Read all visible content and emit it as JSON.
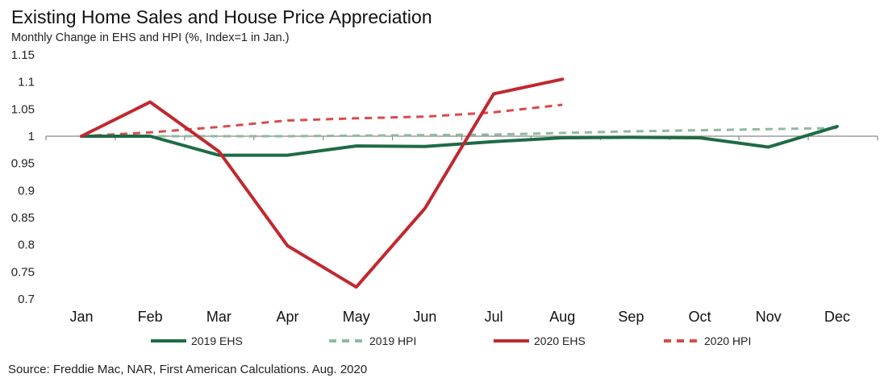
{
  "chart_data": {
    "type": "line",
    "title": "Existing Home Sales and House Price Appreciation",
    "subtitle": "Monthly Change in EHS and HPI (%, Index=1 in Jan.)",
    "categories": [
      "Jan",
      "Feb",
      "Mar",
      "Apr",
      "May",
      "Jun",
      "Jul",
      "Aug",
      "Sep",
      "Oct",
      "Nov",
      "Dec"
    ],
    "ylim": [
      0.7,
      1.15
    ],
    "yticks": [
      "1.15",
      "1.1",
      "1.05",
      "1",
      "0.95",
      "0.9",
      "0.85",
      "0.8",
      "0.75",
      "0.7"
    ],
    "grid": false,
    "legend_position": "bottom",
    "series": [
      {
        "name": "2019 EHS",
        "style": "solid",
        "color": "#1e6b45",
        "values": [
          1.0,
          1.0,
          0.965,
          0.965,
          0.982,
          0.981,
          0.99,
          0.997,
          0.998,
          0.997,
          0.98,
          1.018
        ]
      },
      {
        "name": "2019 HPI",
        "style": "dashed",
        "color": "#8fb9a0",
        "values": [
          1.0,
          1.0,
          1.0,
          1.0,
          1.001,
          1.002,
          1.003,
          1.006,
          1.009,
          1.011,
          1.013,
          1.015
        ]
      },
      {
        "name": "2020 EHS",
        "style": "solid",
        "color": "#c1282e",
        "values": [
          1.0,
          1.063,
          0.972,
          0.798,
          0.722,
          0.867,
          1.078,
          1.105,
          null,
          null,
          null,
          null
        ]
      },
      {
        "name": "2020 HPI",
        "style": "dashed",
        "color": "#d94a4a",
        "values": [
          1.0,
          1.007,
          1.017,
          1.029,
          1.033,
          1.036,
          1.044,
          1.058,
          null,
          null,
          null,
          null
        ]
      }
    ]
  },
  "source": "Source: Freddie Mac, NAR, First American Calculations. Aug. 2020"
}
